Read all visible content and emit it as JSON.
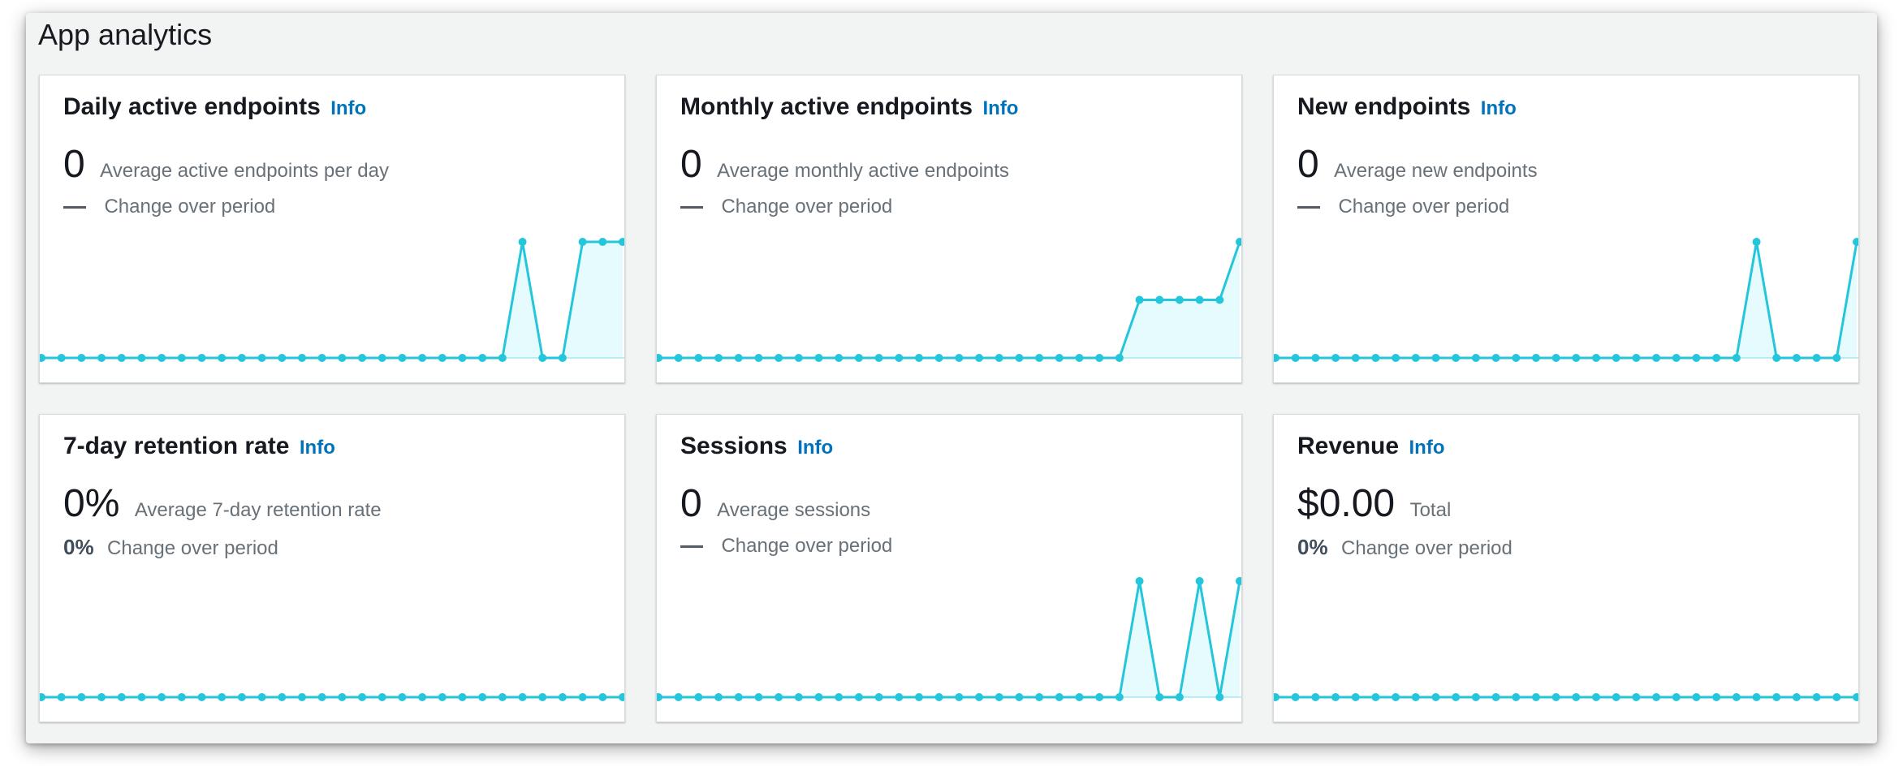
{
  "panel": {
    "title": "App analytics"
  },
  "info_label": "Info",
  "colors": {
    "line": "#24c6dc",
    "area": "#e6fbfd",
    "baseline": "#a8e6ef"
  },
  "cards": [
    {
      "title": "Daily active endpoints",
      "value": "0",
      "description": "Average active endpoints per day",
      "change_pct": "",
      "change_label": "Change over period",
      "chart_data": {
        "type": "area",
        "values": [
          0,
          0,
          0,
          0,
          0,
          0,
          0,
          0,
          0,
          0,
          0,
          0,
          0,
          0,
          0,
          0,
          0,
          0,
          0,
          0,
          0,
          0,
          0,
          0,
          1,
          0,
          0,
          1,
          1,
          1
        ]
      }
    },
    {
      "title": "Monthly active endpoints",
      "value": "0",
      "description": "Average monthly active endpoints",
      "change_pct": "",
      "change_label": "Change over period",
      "chart_data": {
        "type": "area",
        "values": [
          0,
          0,
          0,
          0,
          0,
          0,
          0,
          0,
          0,
          0,
          0,
          0,
          0,
          0,
          0,
          0,
          0,
          0,
          0,
          0,
          0,
          0,
          0,
          0,
          0.5,
          0.5,
          0.5,
          0.5,
          0.5,
          1
        ]
      }
    },
    {
      "title": "New endpoints",
      "value": "0",
      "description": "Average new endpoints",
      "change_pct": "",
      "change_label": "Change over period",
      "chart_data": {
        "type": "area",
        "values": [
          0,
          0,
          0,
          0,
          0,
          0,
          0,
          0,
          0,
          0,
          0,
          0,
          0,
          0,
          0,
          0,
          0,
          0,
          0,
          0,
          0,
          0,
          0,
          0,
          1,
          0,
          0,
          0,
          0,
          1
        ]
      }
    },
    {
      "title": "7-day retention rate",
      "value": "0%",
      "description": "Average 7-day retention rate",
      "change_pct": "0%",
      "change_label": "Change over period",
      "chart_data": {
        "type": "area",
        "values": [
          0,
          0,
          0,
          0,
          0,
          0,
          0,
          0,
          0,
          0,
          0,
          0,
          0,
          0,
          0,
          0,
          0,
          0,
          0,
          0,
          0,
          0,
          0,
          0,
          0,
          0,
          0,
          0,
          0,
          0
        ]
      }
    },
    {
      "title": "Sessions",
      "value": "0",
      "description": "Average sessions",
      "change_pct": "",
      "change_label": "Change over period",
      "chart_data": {
        "type": "area",
        "values": [
          0,
          0,
          0,
          0,
          0,
          0,
          0,
          0,
          0,
          0,
          0,
          0,
          0,
          0,
          0,
          0,
          0,
          0,
          0,
          0,
          0,
          0,
          0,
          0,
          1,
          0,
          0,
          1,
          0,
          1
        ]
      }
    },
    {
      "title": "Revenue",
      "value": "$0.00",
      "description": "Total",
      "change_pct": "0%",
      "change_label": "Change over period",
      "chart_data": {
        "type": "area",
        "values": [
          0,
          0,
          0,
          0,
          0,
          0,
          0,
          0,
          0,
          0,
          0,
          0,
          0,
          0,
          0,
          0,
          0,
          0,
          0,
          0,
          0,
          0,
          0,
          0,
          0,
          0,
          0,
          0,
          0,
          0
        ]
      }
    }
  ]
}
